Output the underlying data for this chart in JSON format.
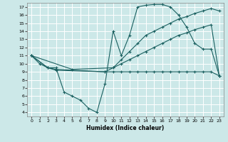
{
  "xlabel": "Humidex (Indice chaleur)",
  "bg_color": "#cce8e8",
  "line_color": "#1a6060",
  "grid_color": "#ffffff",
  "xlim": [
    -0.5,
    23.5
  ],
  "ylim": [
    3.5,
    17.5
  ],
  "xticks": [
    0,
    1,
    2,
    3,
    4,
    5,
    6,
    7,
    8,
    9,
    10,
    11,
    12,
    13,
    14,
    15,
    16,
    17,
    18,
    19,
    20,
    21,
    22,
    23
  ],
  "yticks": [
    4,
    5,
    6,
    7,
    8,
    9,
    10,
    11,
    12,
    13,
    14,
    15,
    16,
    17
  ],
  "line1_x": [
    0,
    1,
    2,
    3,
    4,
    5,
    6,
    7,
    8,
    9,
    10,
    11,
    12,
    13,
    14,
    15,
    16,
    17,
    18,
    19,
    20,
    21,
    22,
    23
  ],
  "line1_y": [
    11,
    10,
    9.5,
    9.5,
    6.5,
    6.0,
    5.5,
    4.5,
    4.0,
    7.5,
    14.0,
    11.0,
    13.5,
    17.0,
    17.2,
    17.3,
    17.3,
    17.0,
    16.0,
    14.5,
    12.5,
    11.8,
    11.8,
    8.5
  ],
  "line2_x": [
    0,
    2,
    3,
    9,
    10,
    11,
    12,
    13,
    14,
    15,
    16,
    17,
    18,
    19,
    20,
    21,
    22,
    23
  ],
  "line2_y": [
    11,
    9.5,
    9.3,
    9.0,
    9.5,
    10.5,
    11.5,
    12.5,
    13.5,
    14.0,
    14.5,
    15.0,
    15.5,
    15.8,
    16.2,
    16.5,
    16.8,
    16.5
  ],
  "line3_x": [
    0,
    5,
    10,
    11,
    12,
    13,
    14,
    15,
    16,
    17,
    18,
    19,
    20,
    21,
    22,
    23
  ],
  "line3_y": [
    11,
    9.3,
    9.5,
    10.0,
    10.5,
    11.0,
    11.5,
    12.0,
    12.5,
    13.0,
    13.5,
    13.8,
    14.2,
    14.5,
    14.8,
    8.5
  ],
  "line4_x": [
    0,
    2,
    3,
    9,
    10,
    11,
    12,
    13,
    14,
    15,
    16,
    17,
    18,
    19,
    20,
    21,
    22,
    23
  ],
  "line4_y": [
    11,
    9.5,
    9.2,
    9.0,
    9.0,
    9.0,
    9.0,
    9.0,
    9.0,
    9.0,
    9.0,
    9.0,
    9.0,
    9.0,
    9.0,
    9.0,
    9.0,
    8.5
  ]
}
